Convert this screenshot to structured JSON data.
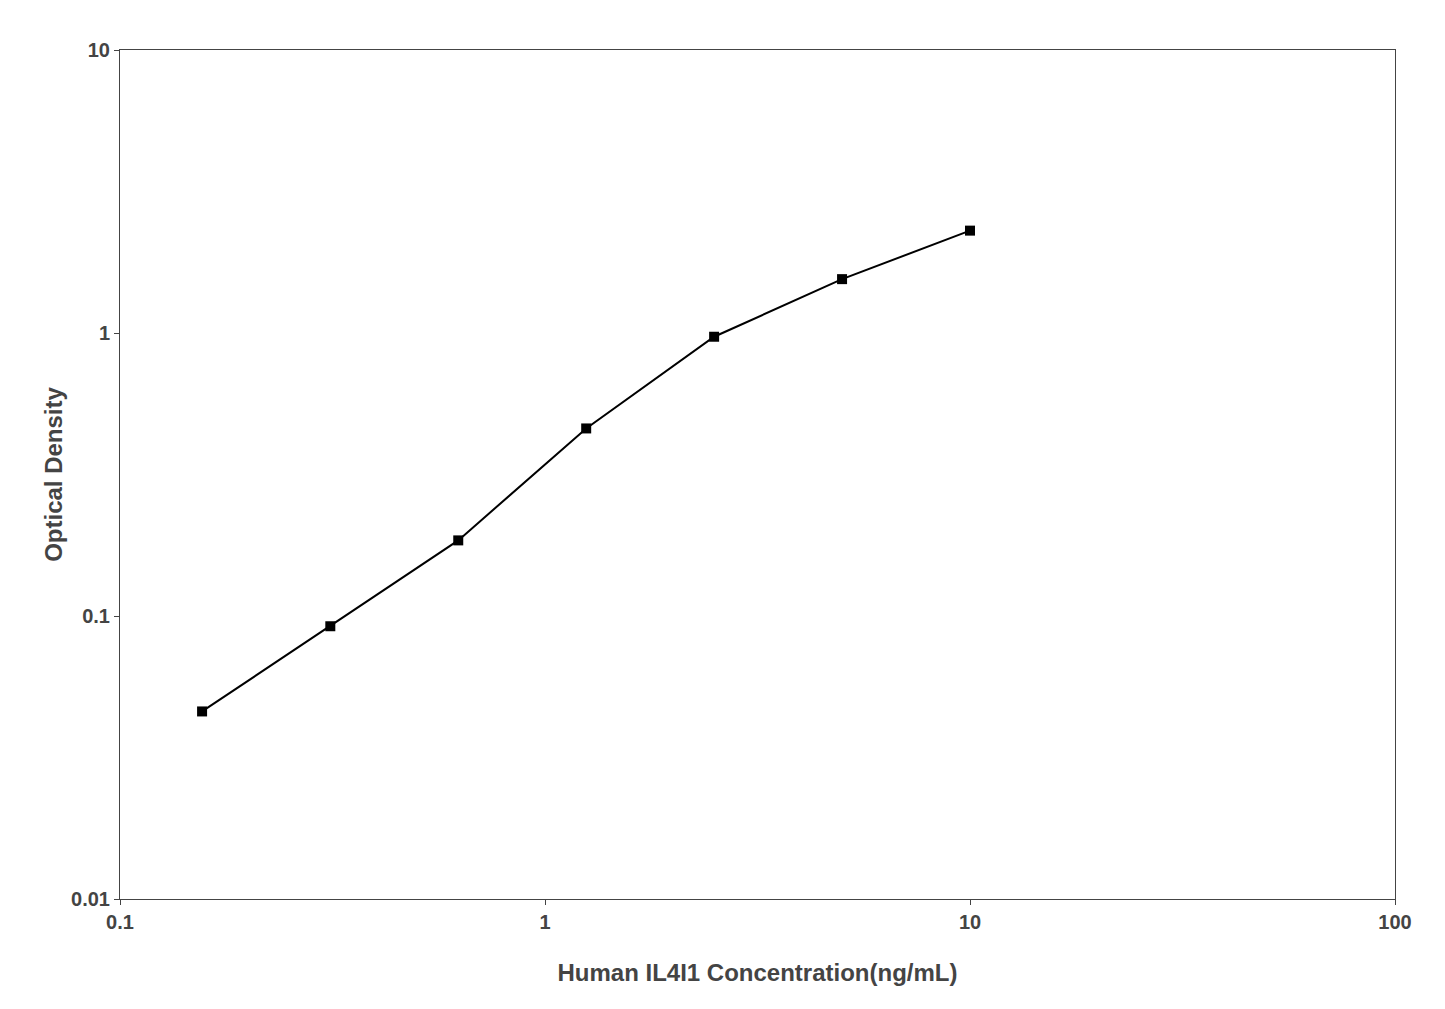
{
  "chart_data": {
    "type": "line",
    "x": [
      0.156,
      0.3125,
      0.625,
      1.25,
      2.5,
      5.0,
      10.0
    ],
    "values": [
      0.046,
      0.092,
      0.185,
      0.46,
      0.97,
      1.55,
      2.3
    ],
    "xlabel": "Human IL4I1 Concentration(ng/mL)",
    "ylabel": "Optical Density",
    "xlim": [
      0.1,
      100
    ],
    "ylim": [
      0.01,
      10
    ],
    "xticks": [
      0.1,
      1,
      10,
      100
    ],
    "yticks": [
      0.01,
      0.1,
      1,
      10
    ],
    "log": true,
    "grid": false,
    "color": "#000000",
    "marker": "square",
    "line_style": "solid"
  }
}
